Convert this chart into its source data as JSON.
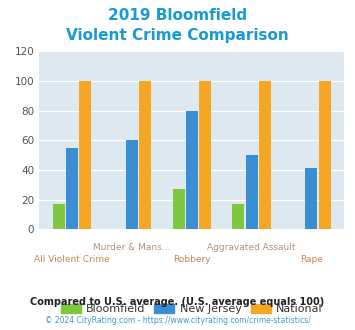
{
  "title_line1": "2019 Bloomfield",
  "title_line2": "Violent Crime Comparison",
  "title_color": "#1a9ad4",
  "categories": [
    "All Violent Crime",
    "Murder & Mans...",
    "Robbery",
    "Aggravated Assault",
    "Rape"
  ],
  "bloomfield": [
    17,
    0,
    27,
    17,
    0
  ],
  "new_jersey": [
    55,
    60,
    80,
    50,
    41
  ],
  "national": [
    100,
    100,
    100,
    100,
    100
  ],
  "bar_colors": {
    "bloomfield": "#7ec840",
    "new_jersey": "#3a8fd4",
    "national": "#f5a623"
  },
  "ylim": [
    0,
    120
  ],
  "yticks": [
    0,
    20,
    40,
    60,
    80,
    100,
    120
  ],
  "fig_bg": "#ffffff",
  "plot_bg": "#dde8f0",
  "xtick_color_top": "#b09080",
  "xtick_color_bottom": "#cc8855",
  "footnote": "Compared to U.S. average. (U.S. average equals 100)",
  "footnote2": "© 2024 CityRating.com - https://www.cityrating.com/crime-statistics/",
  "footnote_color": "#222222",
  "footnote2_color": "#4499cc",
  "legend_labels": [
    "Bloomfield",
    "New Jersey",
    "National"
  ],
  "legend_text_color": "#333333"
}
